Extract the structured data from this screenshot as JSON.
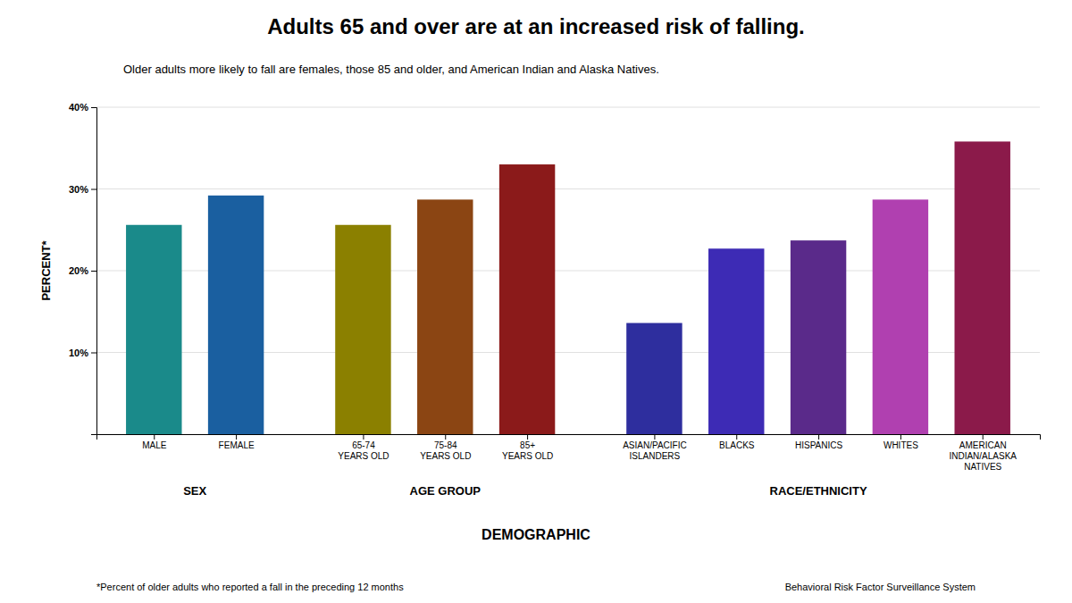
{
  "chart_data": {
    "type": "bar",
    "title": "Adults 65 and over are at an increased risk of falling.",
    "subtitle": "Older adults more likely to fall are females, those 85 and older, and American Indian and Alaska Natives.",
    "x_label": "DEMOGRAPHIC",
    "y_label": "PERCENT*",
    "annotations": [
      "*Percent of older adults who reported a fall in the preceding 12 months",
      "Behavioral Risk Factor Surveillance System"
    ],
    "categories": [
      "MALE",
      "FEMALE",
      "65-74\nYEARS OLD",
      "75-84\nYEARS OLD",
      "85+\nYEARS OLD",
      "ASIAN/PACIFIC\nISLANDERS",
      "BLACKS",
      "HISPANICS",
      "WHITES",
      "AMERICAN\nINDIAN/ALASKA\nNATIVES"
    ],
    "category_groups": [
      "SEX",
      "SEX",
      "AGE GROUP",
      "AGE GROUP",
      "AGE GROUP",
      "RACE/ETHNICITY",
      "RACE/ETHNICITY",
      "RACE/ETHNICITY",
      "RACE/ETHNICITY",
      "RACE/ETHNICITY"
    ],
    "values": [
      25.6,
      29.2,
      25.6,
      28.7,
      33.0,
      13.6,
      22.7,
      23.7,
      28.7,
      35.8
    ],
    "colors": [
      "#1a8a8a",
      "#1a5fa0",
      "#8b8000",
      "#8b4513",
      "#8b1a1a",
      "#2e2e9e",
      "#3d2bb5",
      "#5a2a8a",
      "#b040b0",
      "#8b1a4a"
    ],
    "ylim": [
      0,
      40
    ],
    "yticks": [
      {
        "value": 0,
        "label": null
      },
      {
        "value": 10,
        "label": "10%"
      },
      {
        "value": 20,
        "label": "20%"
      },
      {
        "value": 30,
        "label": "30%"
      },
      {
        "value": 40,
        "label": "40%"
      }
    ],
    "grid": true
  }
}
